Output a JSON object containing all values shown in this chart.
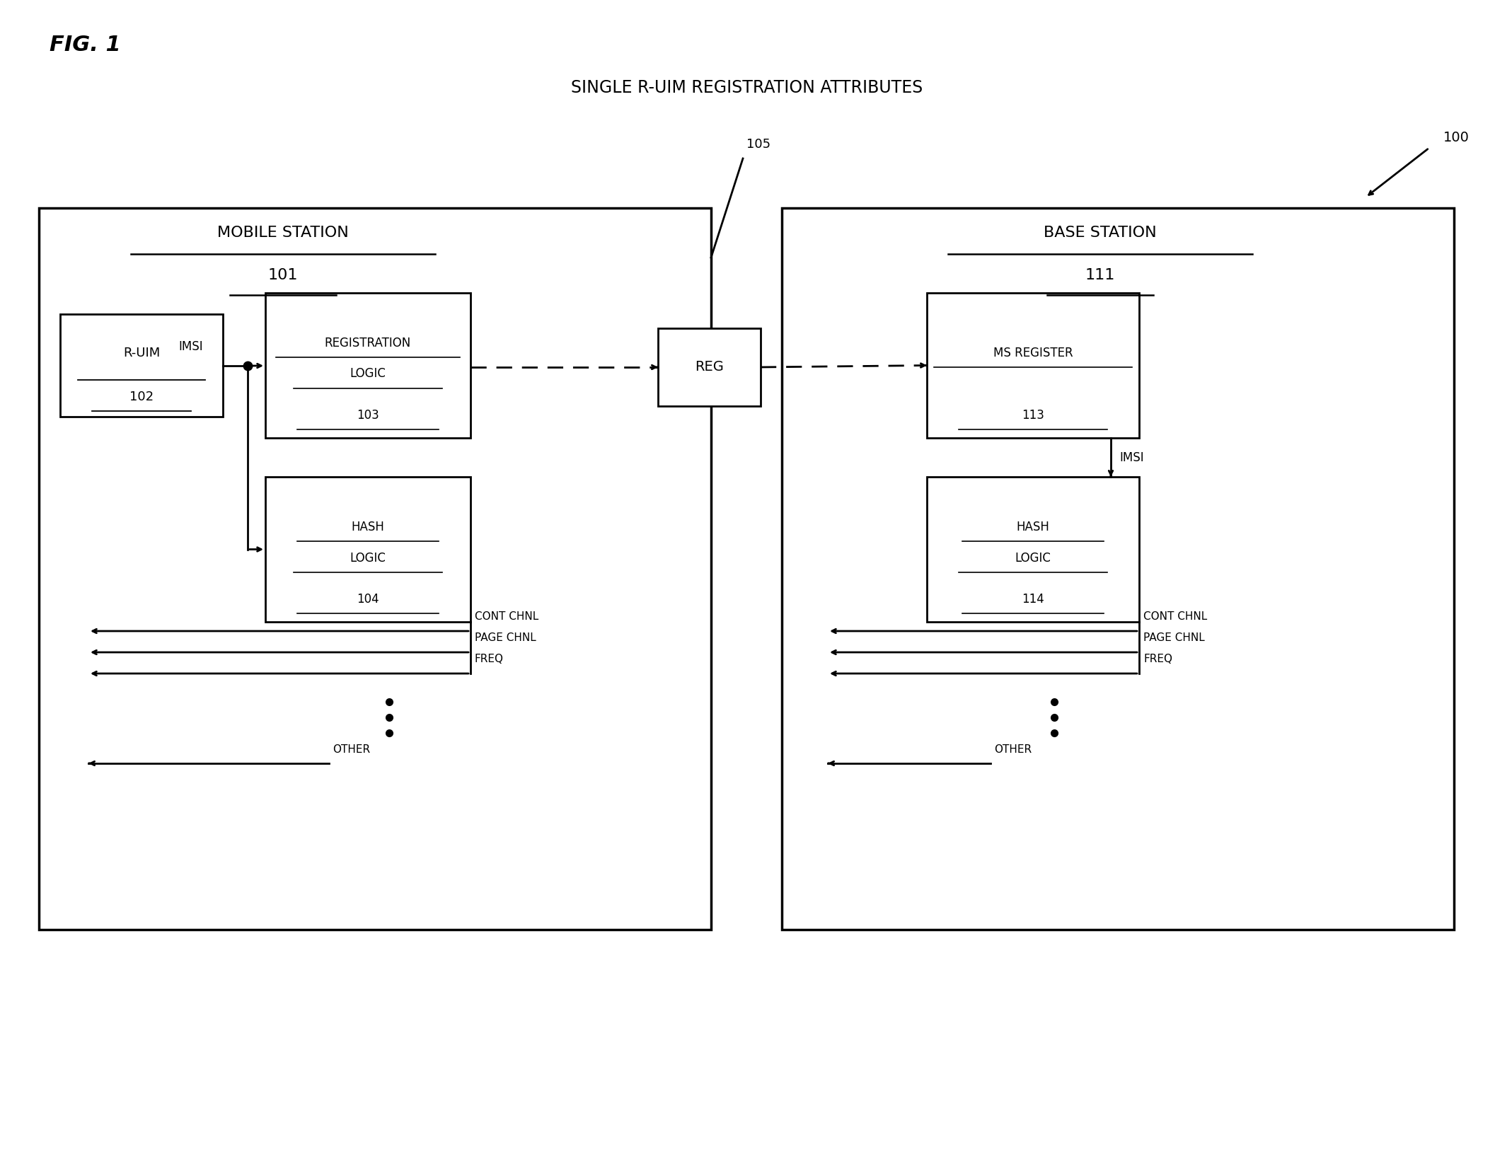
{
  "fig_label": "FIG. 1",
  "title": "SINGLE R-UIM REGISTRATION ATTRIBUTES",
  "ref_100": "100",
  "ref_105": "105",
  "mobile_station_label": "MOBILE STATION",
  "mobile_station_num": "101",
  "base_station_label": "BASE STATION",
  "base_station_num": "111",
  "ruim_label": "R-UIM",
  "ruim_num": "102",
  "reg_logic_line1": "REGISTRATION",
  "reg_logic_line2": "LOGIC",
  "reg_logic_num": "103",
  "hash_logic_line1": "HASH",
  "hash_logic_line2": "LOGIC",
  "hash_logic_ms_num": "104",
  "reg_box_label": "REG",
  "ms_register_label": "MS REGISTER",
  "ms_register_num": "113",
  "hash_logic_bs_num": "114",
  "imsi_label": "IMSI",
  "cont_chnl": "CONT CHNL",
  "page_chnl": "PAGE CHNL",
  "freq": "FREQ",
  "other": "OTHER",
  "bg_color": "#ffffff",
  "box_color": "#000000",
  "text_color": "#000000"
}
